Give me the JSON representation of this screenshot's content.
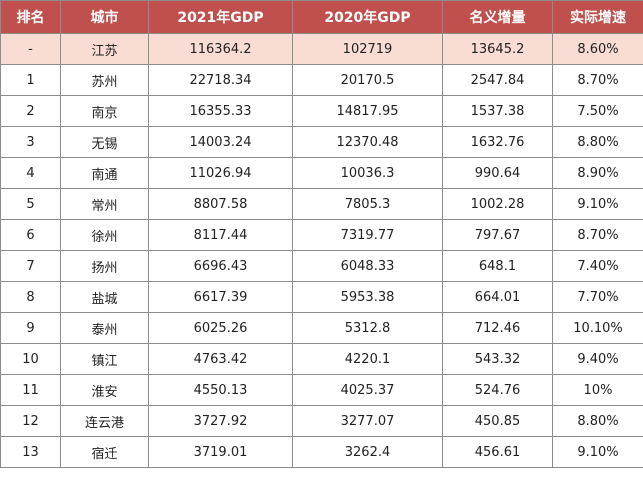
{
  "table": {
    "headers": [
      "排名",
      "城市",
      "2021年GDP",
      "2020年GDP",
      "名义增量",
      "实际增速"
    ],
    "rows": [
      [
        "-",
        "江苏",
        "116364.2",
        "102719",
        "13645.2",
        "8.60%"
      ],
      [
        "1",
        "苏州",
        "22718.34",
        "20170.5",
        "2547.84",
        "8.70%"
      ],
      [
        "2",
        "南京",
        "16355.33",
        "14817.95",
        "1537.38",
        "7.50%"
      ],
      [
        "3",
        "无锡",
        "14003.24",
        "12370.48",
        "1632.76",
        "8.80%"
      ],
      [
        "4",
        "南通",
        "11026.94",
        "10036.3",
        "990.64",
        "8.90%"
      ],
      [
        "5",
        "常州",
        "8807.58",
        "7805.3",
        "1002.28",
        "9.10%"
      ],
      [
        "6",
        "徐州",
        "8117.44",
        "7319.77",
        "797.67",
        "8.70%"
      ],
      [
        "7",
        "扬州",
        "6696.43",
        "6048.33",
        "648.1",
        "7.40%"
      ],
      [
        "8",
        "盐城",
        "6617.39",
        "5953.38",
        "664.01",
        "7.70%"
      ],
      [
        "9",
        "泰州",
        "6025.26",
        "5312.8",
        "712.46",
        "10.10%"
      ],
      [
        "10",
        "镇江",
        "4763.42",
        "4220.1",
        "543.32",
        "9.40%"
      ],
      [
        "11",
        "淮安",
        "4550.13",
        "4025.37",
        "524.76",
        "10%"
      ],
      [
        "12",
        "连云港",
        "3727.92",
        "3277.07",
        "450.85",
        "8.80%"
      ],
      [
        "13",
        "宿迁",
        "3719.01",
        "3262.4",
        "456.61",
        "9.10%"
      ]
    ]
  },
  "colors": {
    "header_bg": "#c0504d",
    "header_text": "#ffffff",
    "highlight_row_bg": "#f9dcd4",
    "border": "#8c8c8c"
  }
}
